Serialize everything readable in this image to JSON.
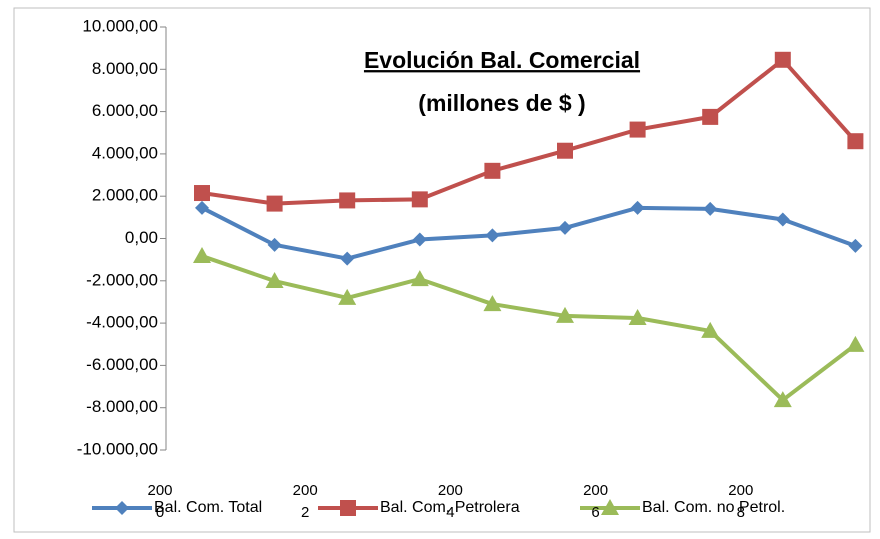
{
  "chart_data": {
    "type": "line",
    "title": "Evolución Bal. Comercial",
    "subtitle": "(millones de $ )",
    "categories": [
      "2000",
      null,
      "2002",
      null,
      "2004",
      null,
      "2006",
      null,
      "2008",
      null
    ],
    "series": [
      {
        "name": "Bal. Com. Total",
        "color": "#4f81bd",
        "marker": "diamond",
        "values": [
          1450,
          -300,
          -950,
          -50,
          150,
          500,
          1450,
          1400,
          900,
          -350
        ]
      },
      {
        "name": "Bal. Com. Petrolera",
        "color": "#c0504d",
        "marker": "square",
        "values": [
          2150,
          1650,
          1800,
          1850,
          3200,
          4150,
          5150,
          5750,
          8450,
          4600
        ]
      },
      {
        "name": "Bal. Com. no Petrol.",
        "color": "#9bbb59",
        "marker": "triangle",
        "values": [
          -830,
          -2010,
          -2810,
          -1920,
          -3100,
          -3660,
          -3760,
          -4370,
          -7640,
          -5030
        ]
      }
    ],
    "ylim": [
      -10000,
      10000
    ],
    "yticks": [
      {
        "value": -10000,
        "label": "-10.000,00"
      },
      {
        "value": -8000,
        "label": "-8.000,00"
      },
      {
        "value": -6000,
        "label": "-6.000,00"
      },
      {
        "value": -4000,
        "label": "-4.000,00"
      },
      {
        "value": -2000,
        "label": "-2.000,00"
      },
      {
        "value": 0,
        "label": "0,00"
      },
      {
        "value": 2000,
        "label": "2.000,00"
      },
      {
        "value": 4000,
        "label": "4.000,00"
      },
      {
        "value": 6000,
        "label": "6.000,00"
      },
      {
        "value": 8000,
        "label": "8.000,00"
      },
      {
        "value": 10000,
        "label": "10.000,00"
      }
    ],
    "grid": false,
    "legend": "bottom"
  }
}
